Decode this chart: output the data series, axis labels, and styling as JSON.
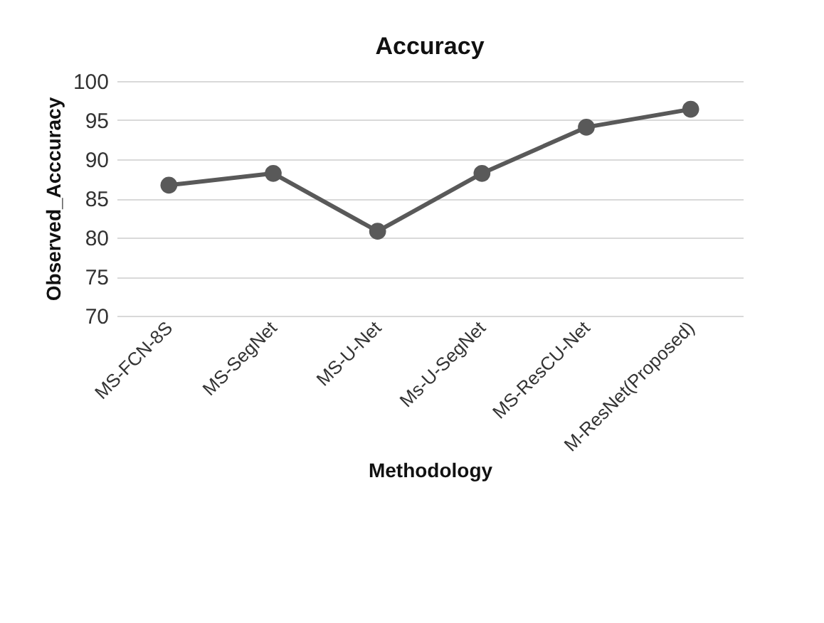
{
  "chart_data": {
    "type": "line",
    "title": "Accuracy",
    "xlabel": "Methodology",
    "ylabel": "Observed_Acccuracy",
    "categories": [
      "MS-FCN-8S",
      "MS-SegNet",
      "MS-U-Net",
      "Ms-U-SegNet",
      "MS-ResCU-Net",
      "M-ResNet(Proposed)"
    ],
    "series": [
      {
        "color": "#595959",
        "values": [
          86.7,
          88.2,
          80.8,
          88.2,
          94.1,
          96.4
        ]
      }
    ],
    "ylim": [
      70,
      100
    ],
    "yticks": [
      70,
      75,
      80,
      85,
      90,
      95,
      100
    ],
    "grid": "y",
    "marker": "circle",
    "line_style": "solid",
    "legend": false
  }
}
